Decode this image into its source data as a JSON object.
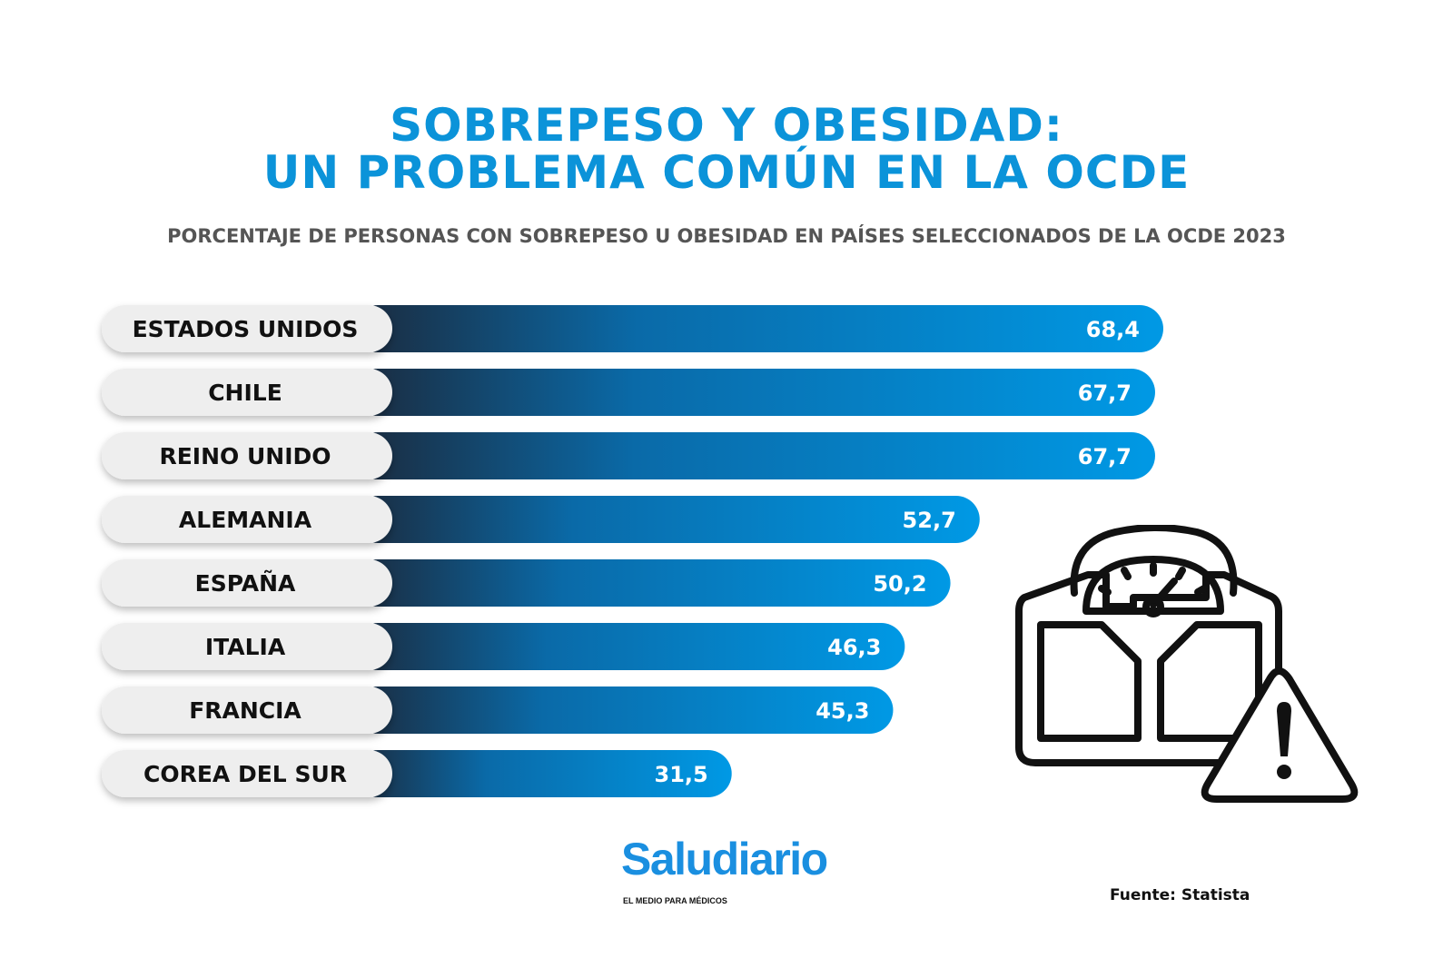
{
  "header": {
    "title_line1": "SOBREPESO Y OBESIDAD:",
    "title_line2": "UN PROBLEMA COMÚN EN LA OCDE",
    "subtitle": "PORCENTAJE DE PERSONAS CON SOBREPESO U OBESIDAD EN PAÍSES SELECCIONADOS DE LA OCDE 2023"
  },
  "chart_data": {
    "type": "bar",
    "orientation": "horizontal",
    "title": "SOBREPESO Y OBESIDAD: UN PROBLEMA COMÚN EN LA OCDE",
    "subtitle": "PORCENTAJE DE PERSONAS CON SOBREPESO U OBESIDAD EN PAÍSES SELECCIONADOS DE LA OCDE 2023",
    "categories": [
      "ESTADOS UNIDOS",
      "CHILE",
      "REINO UNIDO",
      "ALEMANIA",
      "ESPAÑA",
      "ITALIA",
      "FRANCIA",
      "COREA DEL SUR"
    ],
    "values": [
      68.4,
      67.7,
      67.7,
      52.7,
      50.2,
      46.3,
      45.3,
      31.5
    ],
    "value_labels": [
      "68,4",
      "67,7",
      "67,7",
      "52,7",
      "50,2",
      "46,3",
      "45,3",
      "31,5"
    ],
    "grid": false,
    "legend": "none",
    "colors": {
      "bar_start": "#1b2a3d",
      "bar_end": "#0099e5",
      "label_pill": "#eeeeee",
      "title": "#0b93d9"
    }
  },
  "icons": {
    "illustration": "bathroom-scale-warning-icon"
  },
  "footer": {
    "logo_text": "Saludiario",
    "logo_tagline": "EL MEDIO PARA MÉDICOS",
    "source": "Fuente: Statista"
  }
}
